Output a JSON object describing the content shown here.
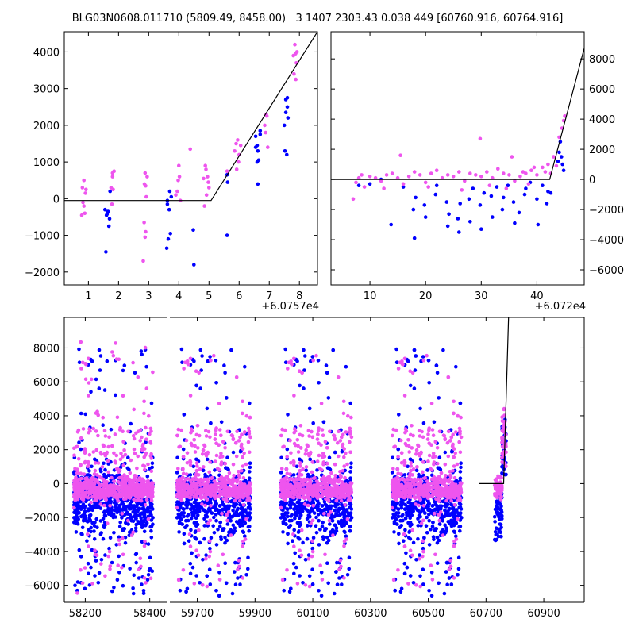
{
  "title": "BLG03N0608.011710 (5809.49, 8458.00)   3 1407 2303.43 0.038 449 [60760.916, 60764.916]",
  "colors": {
    "series_a": "#0000ff",
    "series_b": "#ee55ee",
    "model": "#000000"
  },
  "chart_data": [
    {
      "type": "scatter",
      "panel": "top-left",
      "xlim": [
        0.2,
        8.6
      ],
      "ylim": [
        -2350,
        4550
      ],
      "x_offset_label": "+6.0757e4",
      "xticks": [
        1,
        2,
        3,
        4,
        5,
        6,
        7,
        8
      ],
      "yticks": [
        -2000,
        -1000,
        0,
        1000,
        2000,
        3000,
        4000
      ],
      "yaxis_side": "left",
      "model_line": {
        "x": [
          0.2,
          5.07,
          8.6
        ],
        "y": [
          -50,
          -50,
          4550
        ]
      },
      "series": [
        {
          "color_key": "series_a",
          "points": [
            [
              1.55,
              -300
            ],
            [
              1.6,
              -450
            ],
            [
              1.65,
              -350
            ],
            [
              1.7,
              -550
            ],
            [
              1.58,
              -1450
            ],
            [
              1.72,
              200
            ],
            [
              1.68,
              -750
            ],
            [
              3.62,
              -150
            ],
            [
              3.68,
              -300
            ],
            [
              3.7,
              200
            ],
            [
              3.75,
              50
            ],
            [
              3.65,
              -1100
            ],
            [
              3.6,
              -1350
            ],
            [
              3.72,
              -950
            ],
            [
              4.5,
              -1800
            ],
            [
              4.48,
              -850
            ],
            [
              5.6,
              -1000
            ],
            [
              5.6,
              650
            ],
            [
              5.62,
              450
            ],
            [
              6.55,
              1700
            ],
            [
              6.6,
              1450
            ],
            [
              6.65,
              1050
            ],
            [
              6.6,
              1000
            ],
            [
              6.62,
              400
            ],
            [
              6.7,
              1750
            ],
            [
              6.55,
              1400
            ],
            [
              6.7,
              1850
            ],
            [
              7.55,
              2700
            ],
            [
              7.6,
              2500
            ],
            [
              7.5,
              2000
            ],
            [
              7.52,
              1300
            ],
            [
              7.58,
              1200
            ],
            [
              7.62,
              2200
            ],
            [
              7.55,
              2350
            ],
            [
              7.6,
              2750
            ],
            [
              6.62,
              1300
            ],
            [
              3.62,
              -50
            ],
            [
              1.62,
              -420
            ]
          ]
        },
        {
          "color_key": "series_b",
          "points": [
            [
              0.8,
              300
            ],
            [
              0.85,
              500
            ],
            [
              0.9,
              150
            ],
            [
              0.82,
              -100
            ],
            [
              0.88,
              -400
            ],
            [
              0.78,
              -450
            ],
            [
              0.92,
              250
            ],
            [
              0.85,
              -200
            ],
            [
              1.75,
              300
            ],
            [
              1.8,
              700
            ],
            [
              1.85,
              750
            ],
            [
              1.82,
              250
            ],
            [
              1.78,
              -150
            ],
            [
              1.8,
              600
            ],
            [
              2.85,
              -650
            ],
            [
              2.9,
              -900
            ],
            [
              2.88,
              -1050
            ],
            [
              2.82,
              -1700
            ],
            [
              2.9,
              350
            ],
            [
              2.95,
              600
            ],
            [
              2.88,
              700
            ],
            [
              2.92,
              50
            ],
            [
              2.86,
              400
            ],
            [
              3.9,
              100
            ],
            [
              3.95,
              200
            ],
            [
              3.98,
              500
            ],
            [
              4.0,
              900
            ],
            [
              4.02,
              600
            ],
            [
              4.05,
              -50
            ],
            [
              4.9,
              800
            ],
            [
              4.95,
              600
            ],
            [
              5.0,
              300
            ],
            [
              4.85,
              -200
            ],
            [
              4.92,
              100
            ],
            [
              4.82,
              550
            ],
            [
              4.98,
              450
            ],
            [
              4.88,
              900
            ],
            [
              5.85,
              1300
            ],
            [
              5.9,
              1500
            ],
            [
              5.95,
              1600
            ],
            [
              6.0,
              1200
            ],
            [
              6.05,
              1450
            ],
            [
              5.92,
              800
            ],
            [
              5.98,
              1000
            ],
            [
              6.85,
              2000
            ],
            [
              6.9,
              2300
            ],
            [
              6.95,
              1400
            ],
            [
              6.88,
              1800
            ],
            [
              6.92,
              2250
            ],
            [
              7.8,
              3900
            ],
            [
              7.85,
              4200
            ],
            [
              7.9,
              3700
            ],
            [
              7.82,
              3400
            ],
            [
              7.88,
              3250
            ],
            [
              7.92,
              4000
            ],
            [
              4.38,
              1350
            ],
            [
              5.6,
              750
            ],
            [
              7.87,
              3950
            ]
          ]
        }
      ]
    },
    {
      "type": "scatter",
      "panel": "top-right",
      "xlim": [
        3,
        48.5
      ],
      "ylim": [
        -7000,
        9800
      ],
      "x_offset_label": "+6.072e4",
      "xticks": [
        10,
        20,
        30,
        40
      ],
      "yticks": [
        -6000,
        -4000,
        -2000,
        0,
        2000,
        4000,
        6000,
        8000
      ],
      "yaxis_side": "right",
      "model_line": {
        "x": [
          3,
          42.3,
          48.5
        ],
        "y": [
          0,
          0,
          8700
        ]
      },
      "series": [
        {
          "color_key": "series_a",
          "points": [
            [
              8,
              -400
            ],
            [
              10,
              -300
            ],
            [
              12,
              0
            ],
            [
              13.8,
              -3000
            ],
            [
              16,
              -500
            ],
            [
              17.8,
              -2000
            ],
            [
              18,
              -3900
            ],
            [
              18.2,
              -1200
            ],
            [
              19.8,
              -1700
            ],
            [
              20,
              -2500
            ],
            [
              21.8,
              -1000
            ],
            [
              22,
              -400
            ],
            [
              23.8,
              -1500
            ],
            [
              24,
              -3100
            ],
            [
              24.2,
              -2300
            ],
            [
              25.8,
              -2600
            ],
            [
              26,
              -3500
            ],
            [
              26.2,
              -1600
            ],
            [
              27.8,
              -1300
            ],
            [
              28,
              -2800
            ],
            [
              29.8,
              -1700
            ],
            [
              30,
              -3300
            ],
            [
              31.8,
              -1100
            ],
            [
              32,
              -2500
            ],
            [
              33.8,
              -2000
            ],
            [
              34,
              -1200
            ],
            [
              35.8,
              -1500
            ],
            [
              36,
              -2900
            ],
            [
              37.8,
              -1000
            ],
            [
              38,
              -600
            ],
            [
              40,
              -1300
            ],
            [
              40.2,
              -3000
            ],
            [
              41.8,
              -1600
            ],
            [
              42,
              -800
            ],
            [
              43.8,
              1200
            ],
            [
              44,
              1800
            ],
            [
              44.2,
              2500
            ],
            [
              44.4,
              1500
            ],
            [
              44.6,
              1000
            ],
            [
              44.8,
              600
            ],
            [
              42.5,
              -900
            ],
            [
              36.8,
              -2200
            ],
            [
              28.5,
              -600
            ],
            [
              30.5,
              -900
            ],
            [
              32.8,
              -500
            ],
            [
              34.8,
              -400
            ],
            [
              38.8,
              -200
            ],
            [
              41,
              -400
            ]
          ]
        },
        {
          "color_key": "series_b",
          "points": [
            [
              7,
              -1300
            ],
            [
              7.5,
              -200
            ],
            [
              8,
              100
            ],
            [
              8.5,
              300
            ],
            [
              9,
              -500
            ],
            [
              10,
              200
            ],
            [
              11,
              100
            ],
            [
              12,
              -100
            ],
            [
              13,
              300
            ],
            [
              14,
              400
            ],
            [
              15,
              100
            ],
            [
              15.5,
              1600
            ],
            [
              16,
              -300
            ],
            [
              17,
              200
            ],
            [
              18,
              500
            ],
            [
              19,
              300
            ],
            [
              20,
              -200
            ],
            [
              21,
              400
            ],
            [
              22,
              600
            ],
            [
              23,
              100
            ],
            [
              24,
              300
            ],
            [
              25,
              200
            ],
            [
              26,
              500
            ],
            [
              27,
              -100
            ],
            [
              28,
              400
            ],
            [
              29,
              300
            ],
            [
              29.8,
              2700
            ],
            [
              30,
              200
            ],
            [
              31,
              500
            ],
            [
              32,
              100
            ],
            [
              33,
              700
            ],
            [
              34,
              400
            ],
            [
              35,
              300
            ],
            [
              35.5,
              1500
            ],
            [
              36,
              -100
            ],
            [
              37,
              200
            ],
            [
              38,
              400
            ],
            [
              39,
              600
            ],
            [
              40,
              300
            ],
            [
              41,
              800
            ],
            [
              42,
              1000
            ],
            [
              43,
              1500
            ],
            [
              44,
              2800
            ],
            [
              44.5,
              3400
            ],
            [
              45,
              4200
            ],
            [
              44.8,
              3900
            ],
            [
              43.5,
              900
            ],
            [
              41.5,
              500
            ],
            [
              39.5,
              800
            ],
            [
              37.5,
              500
            ],
            [
              12.5,
              -600
            ],
            [
              20.5,
              -500
            ],
            [
              26.5,
              -700
            ],
            [
              31.5,
              -400
            ],
            [
              34.5,
              -600
            ],
            [
              38.5,
              -300
            ],
            [
              42.5,
              400
            ]
          ]
        }
      ]
    },
    {
      "type": "scatter",
      "panel": "bottom",
      "ylim": [
        -7000,
        9800
      ],
      "xticks": [
        58200,
        58400,
        59700,
        59900,
        60100,
        60300,
        60500,
        60700,
        60900
      ],
      "yticks": [
        -6000,
        -4000,
        -2000,
        0,
        2000,
        4000,
        6000,
        8000
      ],
      "yaxis_side": "left",
      "broken_axis": [
        {
          "xlim": [
            58135,
            58455
          ]
        },
        {
          "xlim": [
            59605,
            61040
          ]
        }
      ],
      "model_line": {
        "x": [
          60677,
          60761,
          60778
        ],
        "y": [
          0,
          0,
          9800
        ]
      },
      "seasons": [
        [
          58165,
          58410
        ],
        [
          59630,
          59885
        ],
        [
          59990,
          60235
        ],
        [
          60375,
          60615
        ],
        [
          60730,
          60770
        ]
      ],
      "approx_points_per_season": 700
    }
  ]
}
